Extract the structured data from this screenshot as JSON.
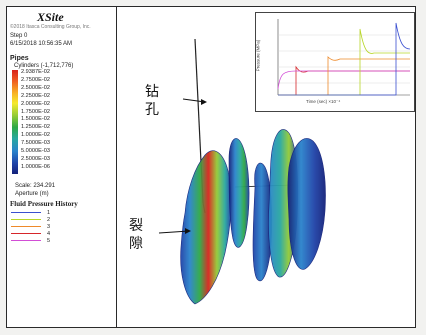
{
  "app": {
    "title": "XSite",
    "subtitle": "©2018 Itasca Consulting Group, Inc.",
    "step": "Step 0",
    "timestamp": "6/15/2018 10:56:35 AM"
  },
  "legend": {
    "section_title": "Pipes",
    "sub_title": "Cylinders (-1,712,776)",
    "labels": [
      "2.9387E-02",
      "2.7500E-02",
      "2.5000E-02",
      "2.2500E-02",
      "2.0000E-02",
      "1.7500E-02",
      "1.5000E-02",
      "1.2500E-02",
      "1.0000E-02",
      "7.5000E-03",
      "5.0000E-03",
      "2.5000E-03",
      "1.0000E-06"
    ],
    "scale": "Scale: 234.291",
    "aperture": "Aperture (m)"
  },
  "fluid_pressure_history": {
    "title": "Fluid Pressure History",
    "entries": [
      {
        "label": "1",
        "color": "#3a4fd0"
      },
      {
        "label": "2",
        "color": "#b8d628"
      },
      {
        "label": "3",
        "color": "#ee8a2a"
      },
      {
        "label": "4",
        "color": "#d6262a"
      },
      {
        "label": "5",
        "color": "#d24ed6"
      }
    ]
  },
  "annotations": {
    "borehole": "钻孔",
    "fracture": "裂隙"
  },
  "inset": {
    "xlabel": "Time (sec) ×10⁻⁴",
    "ylabel": "Pressure (MPa)"
  },
  "colors": {
    "frame": "#2a2a2a",
    "colormap": [
      "#d8231c",
      "#ee5a22",
      "#f8b024",
      "#f5ea2e",
      "#93cb36",
      "#2ea845",
      "#29a8a0",
      "#2a83cc",
      "#1f43a8",
      "#14217a"
    ]
  }
}
